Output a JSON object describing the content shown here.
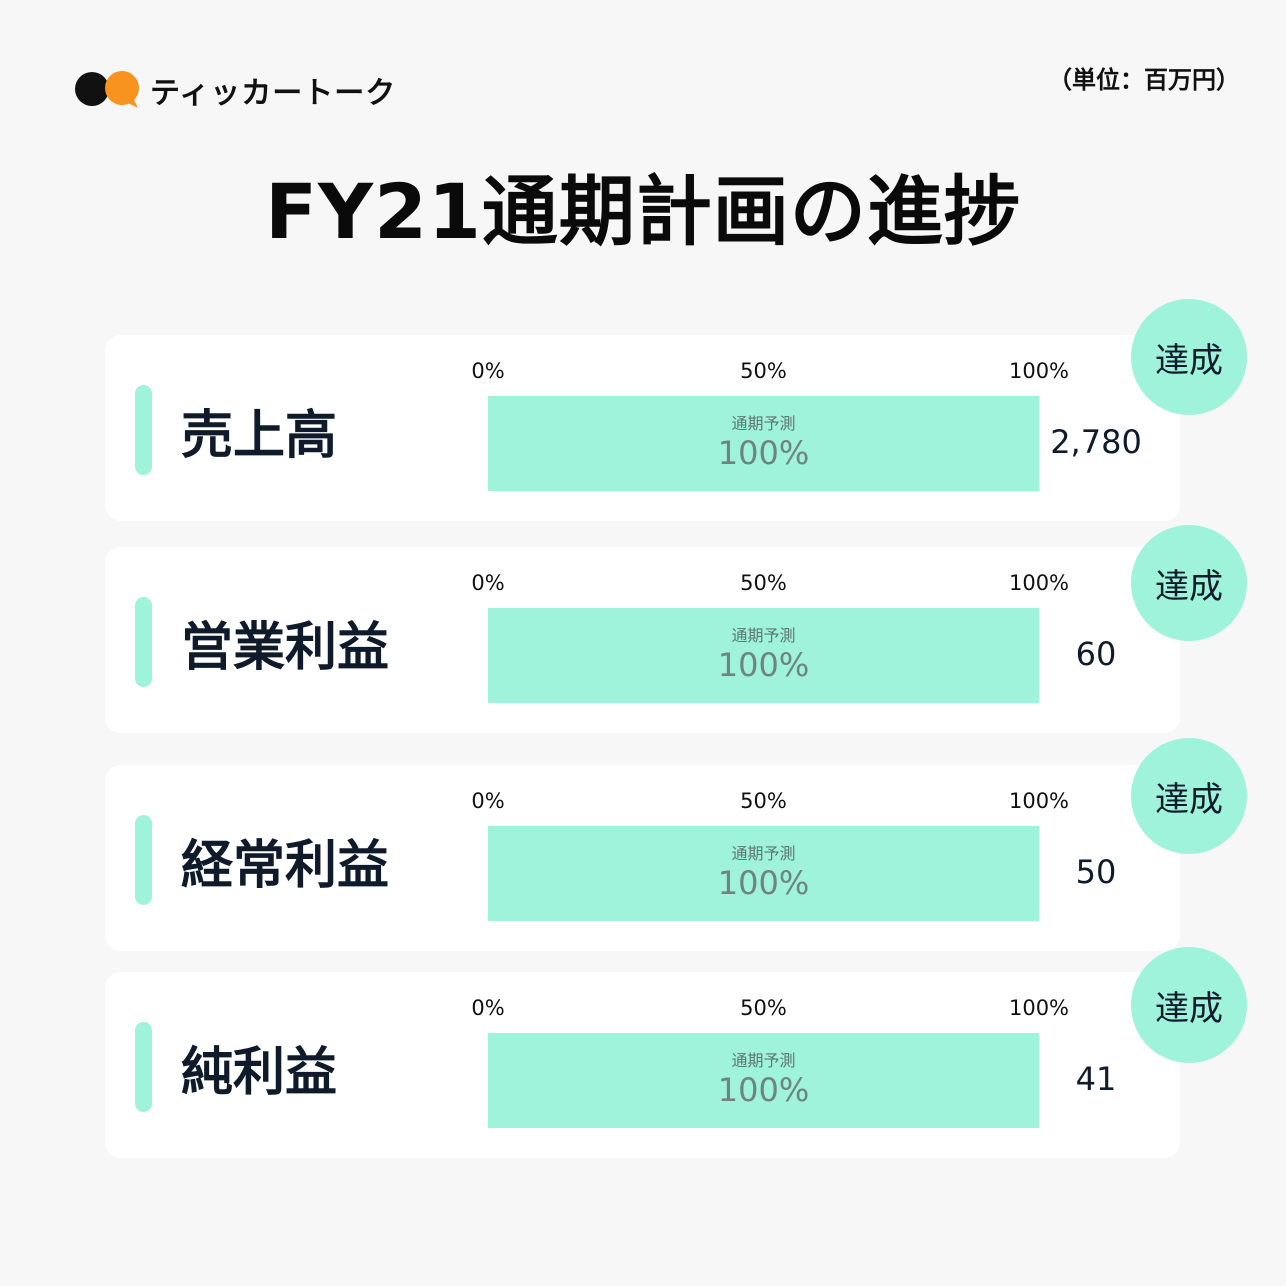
{
  "brand": {
    "name": "ティッカートーク",
    "logo_icon": "two-speech-bubbles-logo",
    "colors": {
      "dark": "#111111",
      "orange": "#f7931e"
    }
  },
  "unit_note": "（単位：百万円）",
  "title": "FY21通期計画の進捗",
  "colors": {
    "accent": "#9ef3da",
    "card": "#ffffff",
    "background": "#f7f7f7"
  },
  "chart_data": {
    "type": "bar",
    "orientation": "horizontal",
    "title": "FY21通期計画の進捗",
    "xlim": [
      0,
      100
    ],
    "tick_labels": [
      "0%",
      "50%",
      "100%"
    ],
    "bar_caption": "通期予測",
    "categories": [
      "売上高",
      "営業利益",
      "経常利益",
      "純利益"
    ],
    "series": [
      {
        "name": "通期予測",
        "values": [
          100,
          100,
          100,
          100
        ],
        "value_labels": [
          "100%",
          "100%",
          "100%",
          "100%"
        ]
      }
    ],
    "forecast_values": [
      "2,780",
      "60",
      "50",
      "41"
    ],
    "status_labels": [
      "達成",
      "達成",
      "達成",
      "達成"
    ]
  }
}
